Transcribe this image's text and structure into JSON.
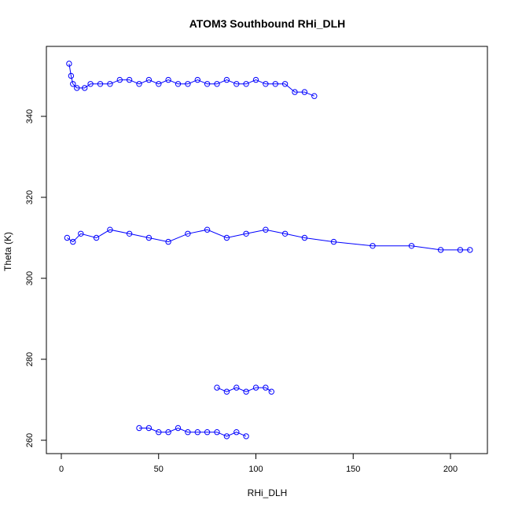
{
  "chart_data": {
    "type": "scatter",
    "title": "ATOM3 Southbound RHi_DLH",
    "xlabel": "RHi_DLH",
    "ylabel": "Theta (K)",
    "xlim": [
      0,
      210
    ],
    "ylim": [
      260,
      354
    ],
    "x_ticks": [
      0,
      50,
      100,
      150,
      200
    ],
    "y_ticks": [
      260,
      280,
      300,
      320,
      340
    ],
    "grid": false,
    "legend": "none",
    "marker": "open-circle",
    "connected": true,
    "color": "#0000ff",
    "series": [
      {
        "x": [
          4,
          5,
          6,
          8,
          12,
          15,
          20,
          25,
          30,
          35,
          40,
          45,
          50,
          55,
          60,
          65,
          70,
          75,
          80,
          85,
          90,
          95,
          100,
          105,
          110,
          115,
          120,
          125,
          130
        ],
        "y": [
          353,
          350,
          348,
          347,
          347,
          348,
          348,
          348,
          349,
          349,
          348,
          349,
          348,
          349,
          348,
          348,
          349,
          348,
          348,
          349,
          348,
          348,
          349,
          348,
          348,
          348,
          346,
          346,
          345
        ]
      },
      {
        "x": [
          3,
          6,
          10,
          18,
          25,
          35,
          45,
          55,
          65,
          75,
          85,
          95,
          105,
          115,
          125,
          140,
          160,
          180,
          195,
          205,
          210
        ],
        "y": [
          310,
          309,
          311,
          310,
          312,
          311,
          310,
          309,
          311,
          312,
          310,
          311,
          312,
          311,
          310,
          309,
          308,
          308,
          307,
          307,
          307
        ]
      },
      {
        "x": [
          40,
          45,
          50,
          55,
          60,
          65,
          70,
          75,
          80,
          85,
          90,
          95
        ],
        "y": [
          263,
          263,
          262,
          262,
          263,
          262,
          262,
          262,
          262,
          261,
          262,
          261
        ]
      },
      {
        "x": [
          80,
          85,
          90,
          95,
          100,
          105,
          108
        ],
        "y": [
          273,
          272,
          273,
          272,
          273,
          273,
          272
        ]
      }
    ]
  }
}
